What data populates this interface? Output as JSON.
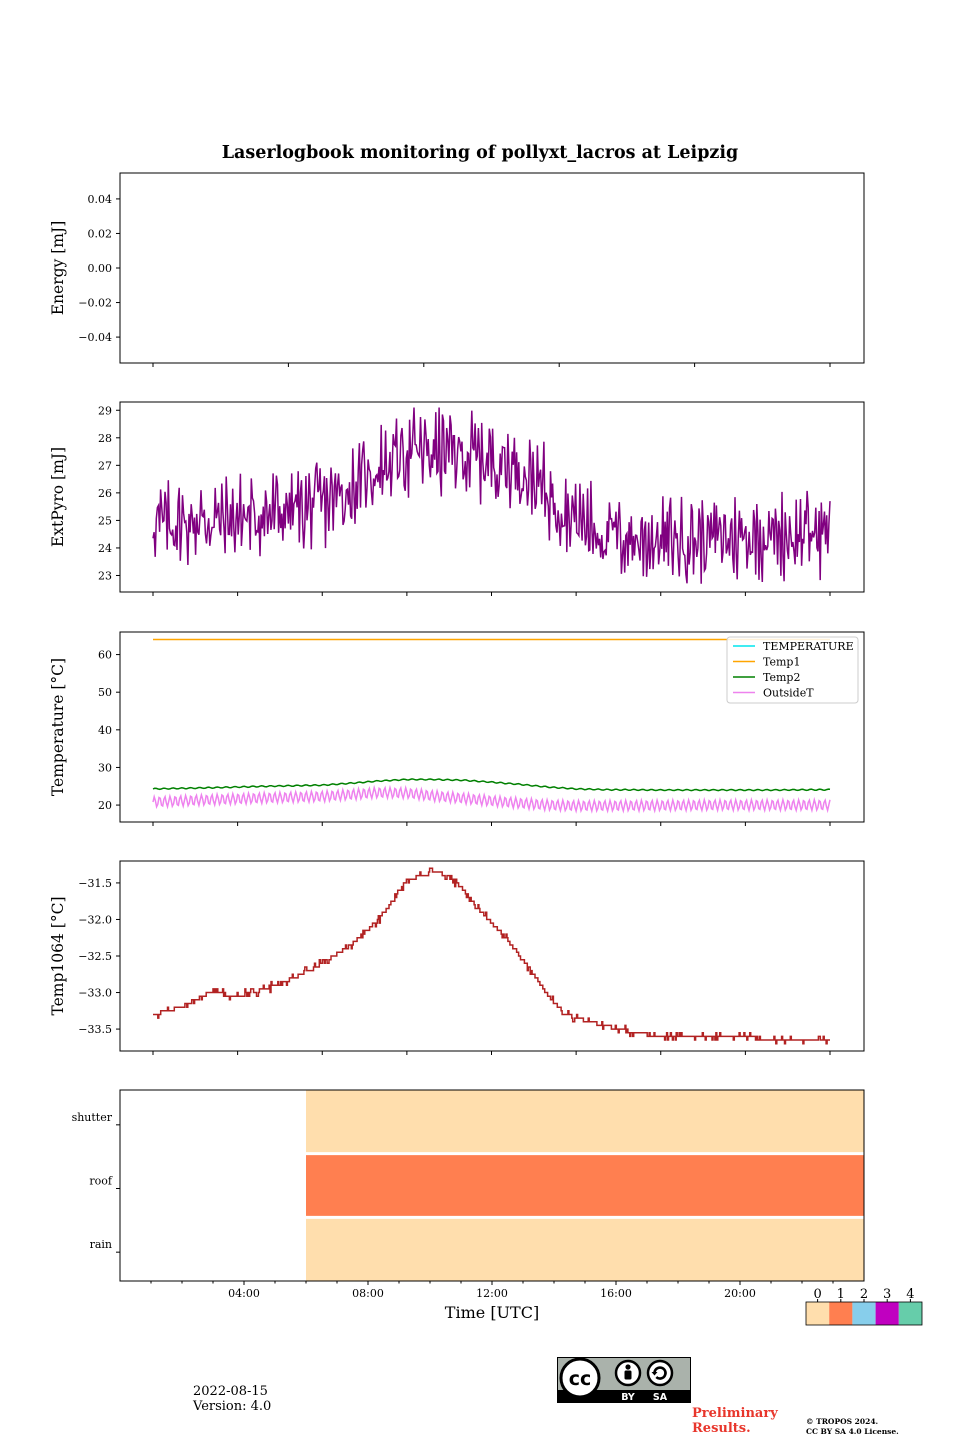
{
  "figure_title": "Laserlogbook monitoring of pollyxt_lacros at Leipzig",
  "footer": {
    "date": "2022-08-15",
    "version": "Version: 4.0",
    "preliminary_line1": "Preliminary",
    "preliminary_line2": "Results.",
    "copyright_line1": "© TROPOS 2024.",
    "copyright_line2": "CC BY SA 4.0 License.",
    "cc_by": "BY",
    "cc_sa": "SA",
    "cc_text": "cc"
  },
  "colors": {
    "extpyro": "#800080",
    "temperature": "#00e5ee",
    "temp1": "#ffa500",
    "temp2": "#008000",
    "outsideT": "#ee82ee",
    "temp1064": "#b22222",
    "status_0": "#ffdead",
    "status_1": "#ff7f50",
    "status_2": "#87ceeb",
    "status_3": "#c000c0",
    "status_4": "#66cdaa"
  },
  "chart_data": [
    {
      "type": "line",
      "ylabel": "Energy [mJ]",
      "ylim": [
        -0.055,
        0.055
      ],
      "yticks": [
        0.04,
        0.02,
        0.0,
        -0.02,
        -0.04
      ],
      "ytick_labels": [
        "0.04",
        "0.02",
        "0.00",
        "−0.02",
        "−0.04"
      ],
      "series": []
    },
    {
      "type": "line",
      "ylabel": "ExtPyro [mJ]",
      "xlim": [
        0,
        24
      ],
      "ylim": [
        22.4,
        29.3
      ],
      "yticks": [
        23,
        24,
        25,
        26,
        27,
        28,
        29
      ],
      "series": [
        {
          "color_key": "extpyro",
          "x": [
            0.0,
            1.0,
            2.0,
            3.0,
            4.0,
            5.0,
            6.0,
            7.0,
            8.0,
            9.0,
            10.0,
            11.0,
            12.0,
            13.0,
            14.0,
            15.0,
            16.0,
            17.0,
            18.0,
            19.0,
            20.0,
            21.0,
            22.0,
            23.0,
            24.0
          ],
          "mean": [
            24.9,
            24.9,
            25.0,
            25.1,
            25.2,
            25.4,
            25.6,
            26.1,
            26.9,
            27.5,
            27.5,
            27.4,
            27.2,
            26.9,
            26.0,
            25.1,
            24.5,
            24.3,
            24.3,
            24.3,
            24.4,
            24.4,
            24.5,
            24.5,
            24.6
          ],
          "amplitude": 1.1,
          "ymin_observed": 22.7,
          "ymax_observed": 29.1
        }
      ]
    },
    {
      "type": "line",
      "ylabel": "Temperature [°C]",
      "xlim": [
        0,
        24
      ],
      "ylim": [
        15.5,
        66
      ],
      "yticks": [
        20,
        30,
        40,
        50,
        60
      ],
      "legend": {
        "placement": "top-right",
        "entries": [
          "TEMPERATURE",
          "Temp1",
          "Temp2",
          "OutsideT"
        ]
      },
      "series": [
        {
          "name": "TEMPERATURE",
          "color_key": "temperature",
          "x": [],
          "y": []
        },
        {
          "name": "Temp1",
          "color_key": "temp1",
          "x": [
            0,
            24
          ],
          "y": [
            64,
            64
          ]
        },
        {
          "name": "Temp2",
          "color_key": "temp2",
          "x": [
            0,
            2,
            4,
            6,
            7,
            8,
            9,
            10,
            11,
            12,
            13,
            14,
            15,
            16,
            18,
            20,
            22,
            24
          ],
          "y": [
            24.3,
            24.6,
            25.0,
            25.3,
            25.8,
            26.4,
            26.8,
            26.8,
            26.6,
            26.1,
            25.5,
            24.8,
            24.3,
            24.1,
            24.0,
            24.0,
            24.0,
            24.1
          ]
        },
        {
          "name": "OutsideT",
          "color_key": "outsideT",
          "x": [
            0,
            2,
            4,
            6,
            7,
            8,
            9,
            10,
            11,
            12,
            13,
            14,
            15,
            16,
            18,
            20,
            22,
            24
          ],
          "mean": [
            20.8,
            21.4,
            21.9,
            22.3,
            22.8,
            23.3,
            23.2,
            22.4,
            21.8,
            21.1,
            20.5,
            20.0,
            19.8,
            19.8,
            19.9,
            20.0,
            20.0,
            20.0
          ],
          "amplitude": 1.4
        }
      ]
    },
    {
      "type": "line",
      "ylabel": "Temp1064 [°C]",
      "xlim": [
        0,
        24
      ],
      "ylim": [
        -33.8,
        -31.2
      ],
      "yticks": [
        -31.5,
        -32.0,
        -32.5,
        -33.0,
        -33.5
      ],
      "ytick_labels": [
        "−31.5",
        "−32.0",
        "−32.5",
        "−33.0",
        "−33.5"
      ],
      "series": [
        {
          "color_key": "temp1064",
          "x": [
            0.0,
            1.0,
            2.0,
            3.0,
            4.0,
            5.0,
            6.0,
            7.0,
            8.0,
            8.5,
            9.0,
            9.5,
            10.0,
            10.5,
            11.0,
            11.5,
            12.0,
            12.5,
            13.0,
            13.5,
            14.0,
            14.5,
            15.0,
            15.5,
            16.0,
            17.0,
            18.0,
            19.0,
            20.0,
            21.0,
            22.0,
            23.0,
            24.0
          ],
          "y": [
            -33.3,
            -33.2,
            -33.0,
            -33.05,
            -32.95,
            -32.8,
            -32.6,
            -32.35,
            -32.0,
            -31.75,
            -31.45,
            -31.4,
            -31.35,
            -31.4,
            -31.6,
            -31.85,
            -32.05,
            -32.25,
            -32.5,
            -32.75,
            -33.05,
            -33.25,
            -33.35,
            -33.4,
            -33.45,
            -33.55,
            -33.6,
            -33.6,
            -33.6,
            -33.6,
            -33.65,
            -33.65,
            -33.65
          ]
        }
      ]
    },
    {
      "type": "heatmap",
      "xlabel": "Time [UTC]",
      "xlim": [
        0,
        24
      ],
      "xticks": [
        4,
        8,
        12,
        16,
        20
      ],
      "xtick_labels": [
        "04:00",
        "08:00",
        "12:00",
        "16:00",
        "20:00"
      ],
      "rows": [
        "shutter",
        "roof",
        "rain"
      ],
      "data_start": 6.0,
      "data_end": 24,
      "row_values": {
        "shutter": 0,
        "roof": 1,
        "rain": 0
      },
      "colorbar": {
        "ticks": [
          0,
          1,
          2,
          3,
          4
        ],
        "tick_labels": [
          "0",
          "1",
          "2",
          "3",
          "4"
        ]
      }
    }
  ]
}
